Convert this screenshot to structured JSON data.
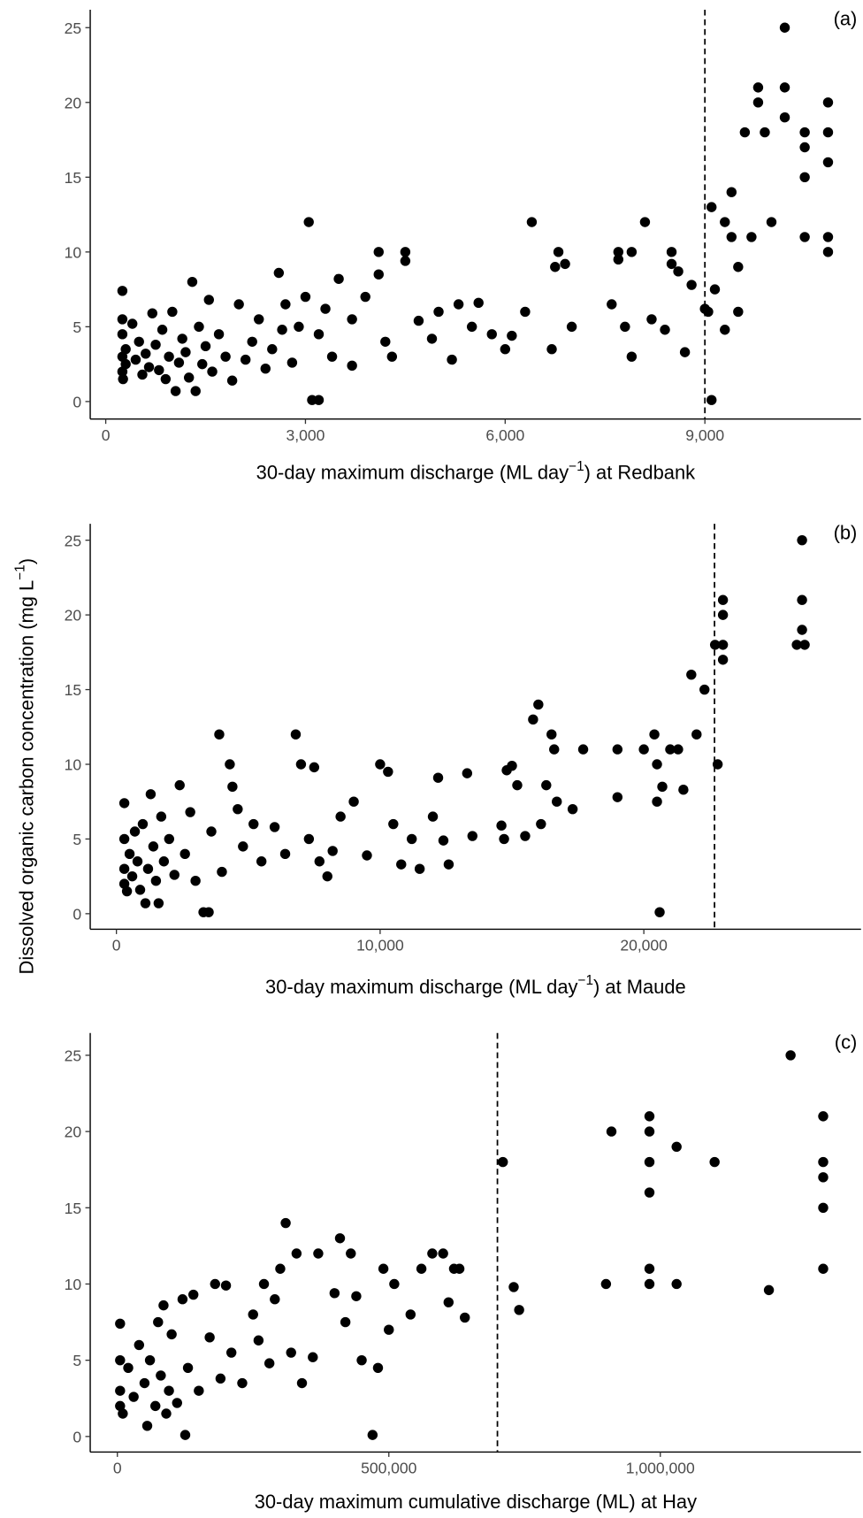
{
  "y_label": [
    "Dissolved organic carbon concentration (mg  L",
    "−1",
    ")"
  ],
  "chart_data": [
    {
      "type": "scatter",
      "annotation": "(a)",
      "x_label": [
        "30-day maximum discharge (ML day",
        "−1",
        ") at Redbank"
      ],
      "xlim": [
        -233,
        11345
      ],
      "xticks": [
        0,
        {
          "value": 3000,
          "label": "3,000"
        },
        {
          "value": 6000,
          "label": "6,000"
        },
        {
          "value": 9000,
          "label": "9,000"
        }
      ],
      "ylim": [
        -1.17,
        26.2
      ],
      "yticks": [
        0,
        5,
        10,
        15,
        20,
        25
      ],
      "reference_line_x": 9000,
      "color": "#000000",
      "x": [
        250,
        250,
        250,
        250,
        250,
        260,
        300,
        300,
        400,
        450,
        500,
        550,
        600,
        650,
        700,
        750,
        800,
        850,
        900,
        950,
        1000,
        1050,
        1100,
        1150,
        1200,
        1250,
        1300,
        1350,
        1400,
        1450,
        1500,
        1550,
        1600,
        1700,
        1800,
        1900,
        2000,
        2100,
        2200,
        2300,
        2400,
        2500,
        2600,
        2650,
        2700,
        2800,
        2900,
        3000,
        3050,
        3100,
        3200,
        3200,
        3300,
        3400,
        3500,
        3700,
        3700,
        3900,
        4100,
        4100,
        4200,
        4300,
        4500,
        4500,
        4700,
        4900,
        5000,
        5200,
        5300,
        5500,
        5600,
        5800,
        6000,
        6100,
        6300,
        6400,
        6700,
        6750,
        6800,
        6900,
        7000,
        7600,
        7700,
        7700,
        7800,
        7900,
        7900,
        8100,
        8200,
        8400,
        8500,
        8500,
        8600,
        8700,
        8800,
        9000,
        9050,
        9100,
        9100,
        9150,
        9300,
        9300,
        9400,
        9400,
        9500,
        9500,
        9600,
        9700,
        9800,
        9800,
        9900,
        10000,
        10200,
        10200,
        10200,
        10500,
        10500,
        10500,
        10500,
        10850,
        10850,
        10850,
        10850,
        10850
      ],
      "values": [
        7.4,
        5.5,
        4.5,
        3,
        2,
        1.5,
        3.5,
        2.5,
        5.2,
        2.8,
        4,
        1.8,
        3.2,
        2.3,
        5.9,
        3.8,
        2.1,
        4.8,
        1.5,
        3,
        6,
        0.7,
        2.6,
        4.2,
        3.3,
        1.6,
        8,
        0.7,
        5,
        2.5,
        3.7,
        6.8,
        2,
        4.5,
        3,
        1.4,
        6.5,
        2.8,
        4,
        5.5,
        2.2,
        3.5,
        8.6,
        4.8,
        6.5,
        2.6,
        5,
        7,
        12,
        0.1,
        0.1,
        4.5,
        6.2,
        3,
        8.2,
        5.5,
        2.4,
        7,
        10,
        8.5,
        4,
        3,
        10,
        9.4,
        5.4,
        4.2,
        6,
        2.8,
        6.5,
        5,
        6.6,
        4.5,
        3.5,
        4.4,
        6,
        12,
        3.5,
        9,
        10,
        9.2,
        5,
        6.5,
        10,
        9.5,
        5,
        3,
        10,
        12,
        5.5,
        4.8,
        9.2,
        10,
        8.7,
        3.3,
        7.8,
        6.2,
        6,
        0.1,
        13,
        7.5,
        4.8,
        12,
        11,
        14,
        9,
        6,
        18,
        11,
        20,
        21,
        18,
        12,
        25,
        21,
        19,
        11,
        15,
        17,
        18,
        20,
        18,
        16,
        11,
        10
      ]
    },
    {
      "type": "scatter",
      "annotation": "(b)",
      "x_label": [
        "30-day maximum discharge (ML day",
        "−1",
        ") at Maude"
      ],
      "xlim": [
        -993,
        28235
      ],
      "xticks": [
        0,
        {
          "value": 10000,
          "label": "10,000"
        },
        {
          "value": 20000,
          "label": "20,000"
        }
      ],
      "ylim": [
        -1.04,
        26.1
      ],
      "yticks": [
        0,
        5,
        10,
        15,
        20,
        25
      ],
      "reference_line_x": 22680,
      "color": "#000000",
      "x": [
        300,
        300,
        300,
        300,
        400,
        500,
        600,
        700,
        800,
        900,
        1000,
        1100,
        1200,
        1300,
        1400,
        1500,
        1600,
        1700,
        1800,
        2000,
        2200,
        2400,
        2600,
        2800,
        3000,
        3300,
        3500,
        3600,
        3900,
        4000,
        4300,
        4400,
        4600,
        4800,
        5200,
        5500,
        6000,
        6400,
        6800,
        7000,
        7300,
        7500,
        7700,
        8000,
        8200,
        8500,
        9000,
        9500,
        10000,
        10300,
        10500,
        10800,
        11200,
        11500,
        12000,
        12200,
        12400,
        12600,
        13300,
        13500,
        14600,
        14700,
        14800,
        15000,
        15200,
        15500,
        15800,
        16000,
        16100,
        16300,
        16500,
        16600,
        16700,
        17300,
        17700,
        19000,
        19000,
        20000,
        20400,
        20500,
        20500,
        20600,
        20700,
        21000,
        21300,
        21500,
        21800,
        22000,
        22300,
        22700,
        22800,
        23000,
        23000,
        23000,
        23000,
        26000,
        26000,
        26000,
        25800,
        26100
      ],
      "values": [
        7.4,
        5,
        3,
        2,
        1.5,
        4,
        2.5,
        5.5,
        3.5,
        1.6,
        6,
        0.7,
        3,
        8,
        4.5,
        2.2,
        0.7,
        6.5,
        3.5,
        5,
        2.6,
        8.6,
        4,
        6.8,
        2.2,
        0.1,
        0.1,
        5.5,
        12,
        2.8,
        10,
        8.5,
        7,
        4.5,
        6,
        3.5,
        5.8,
        4,
        12,
        10,
        5,
        9.8,
        3.5,
        2.5,
        4.2,
        6.5,
        7.5,
        3.9,
        10,
        9.5,
        6,
        3.3,
        5,
        3,
        6.5,
        9.1,
        4.9,
        3.3,
        9.4,
        5.2,
        5.9,
        5,
        9.6,
        9.9,
        8.6,
        5.2,
        13,
        14,
        6,
        8.6,
        12,
        11,
        7.5,
        7,
        11,
        11,
        7.8,
        11,
        12,
        10,
        7.5,
        0.1,
        8.5,
        11,
        11,
        8.3,
        16,
        12,
        15,
        18,
        10,
        21,
        20,
        18,
        17,
        25,
        21,
        19,
        18,
        18
      ]
    },
    {
      "type": "scatter",
      "annotation": "(c)",
      "x_label": [
        "30-day maximum cumulative discharge (ML) at Hay"
      ],
      "xlim": [
        -50000,
        1369643
      ],
      "xticks": [
        0,
        {
          "value": 500000,
          "label": "500,000"
        },
        {
          "value": 1000000,
          "label": "1,000,000"
        }
      ],
      "ylim": [
        -1.02,
        26.46
      ],
      "yticks": [
        0,
        5,
        10,
        15,
        20,
        25
      ],
      "reference_line_x": 700000,
      "color": "#000000",
      "x": [
        5000,
        5000,
        5000,
        5000,
        10000,
        20000,
        30000,
        40000,
        50000,
        55000,
        60000,
        70000,
        75000,
        80000,
        85000,
        90000,
        95000,
        100000,
        110000,
        120000,
        125000,
        130000,
        140000,
        150000,
        170000,
        180000,
        190000,
        200000,
        210000,
        230000,
        250000,
        260000,
        270000,
        280000,
        290000,
        300000,
        310000,
        320000,
        330000,
        340000,
        360000,
        370000,
        400000,
        410000,
        420000,
        430000,
        440000,
        450000,
        480000,
        470000,
        490000,
        500000,
        510000,
        540000,
        560000,
        580000,
        600000,
        610000,
        620000,
        630000,
        640000,
        710000,
        730000,
        740000,
        900000,
        910000,
        980000,
        980000,
        980000,
        980000,
        980000,
        980000,
        1030000,
        1030000,
        1100000,
        1200000,
        1240000,
        1300000,
        1300000,
        1300000,
        1300000,
        1300000
      ],
      "values": [
        7.4,
        5,
        3,
        2,
        1.5,
        4.5,
        2.6,
        6,
        3.5,
        0.7,
        5,
        2,
        7.5,
        4,
        8.6,
        1.5,
        3,
        6.7,
        2.2,
        9,
        0.1,
        4.5,
        9.3,
        3,
        6.5,
        10,
        3.8,
        9.9,
        5.5,
        3.5,
        8,
        6.3,
        10,
        4.8,
        9,
        11,
        14,
        5.5,
        12,
        3.5,
        5.2,
        12,
        9.4,
        13,
        7.5,
        12,
        9.2,
        5,
        4.5,
        0.1,
        11,
        7,
        10,
        8,
        11,
        12,
        12,
        8.8,
        11,
        11,
        7.8,
        18,
        9.8,
        8.3,
        10,
        20,
        21,
        20,
        18,
        16,
        11,
        10,
        19,
        10,
        18,
        9.6,
        25,
        21,
        18,
        17,
        15,
        11
      ]
    }
  ]
}
